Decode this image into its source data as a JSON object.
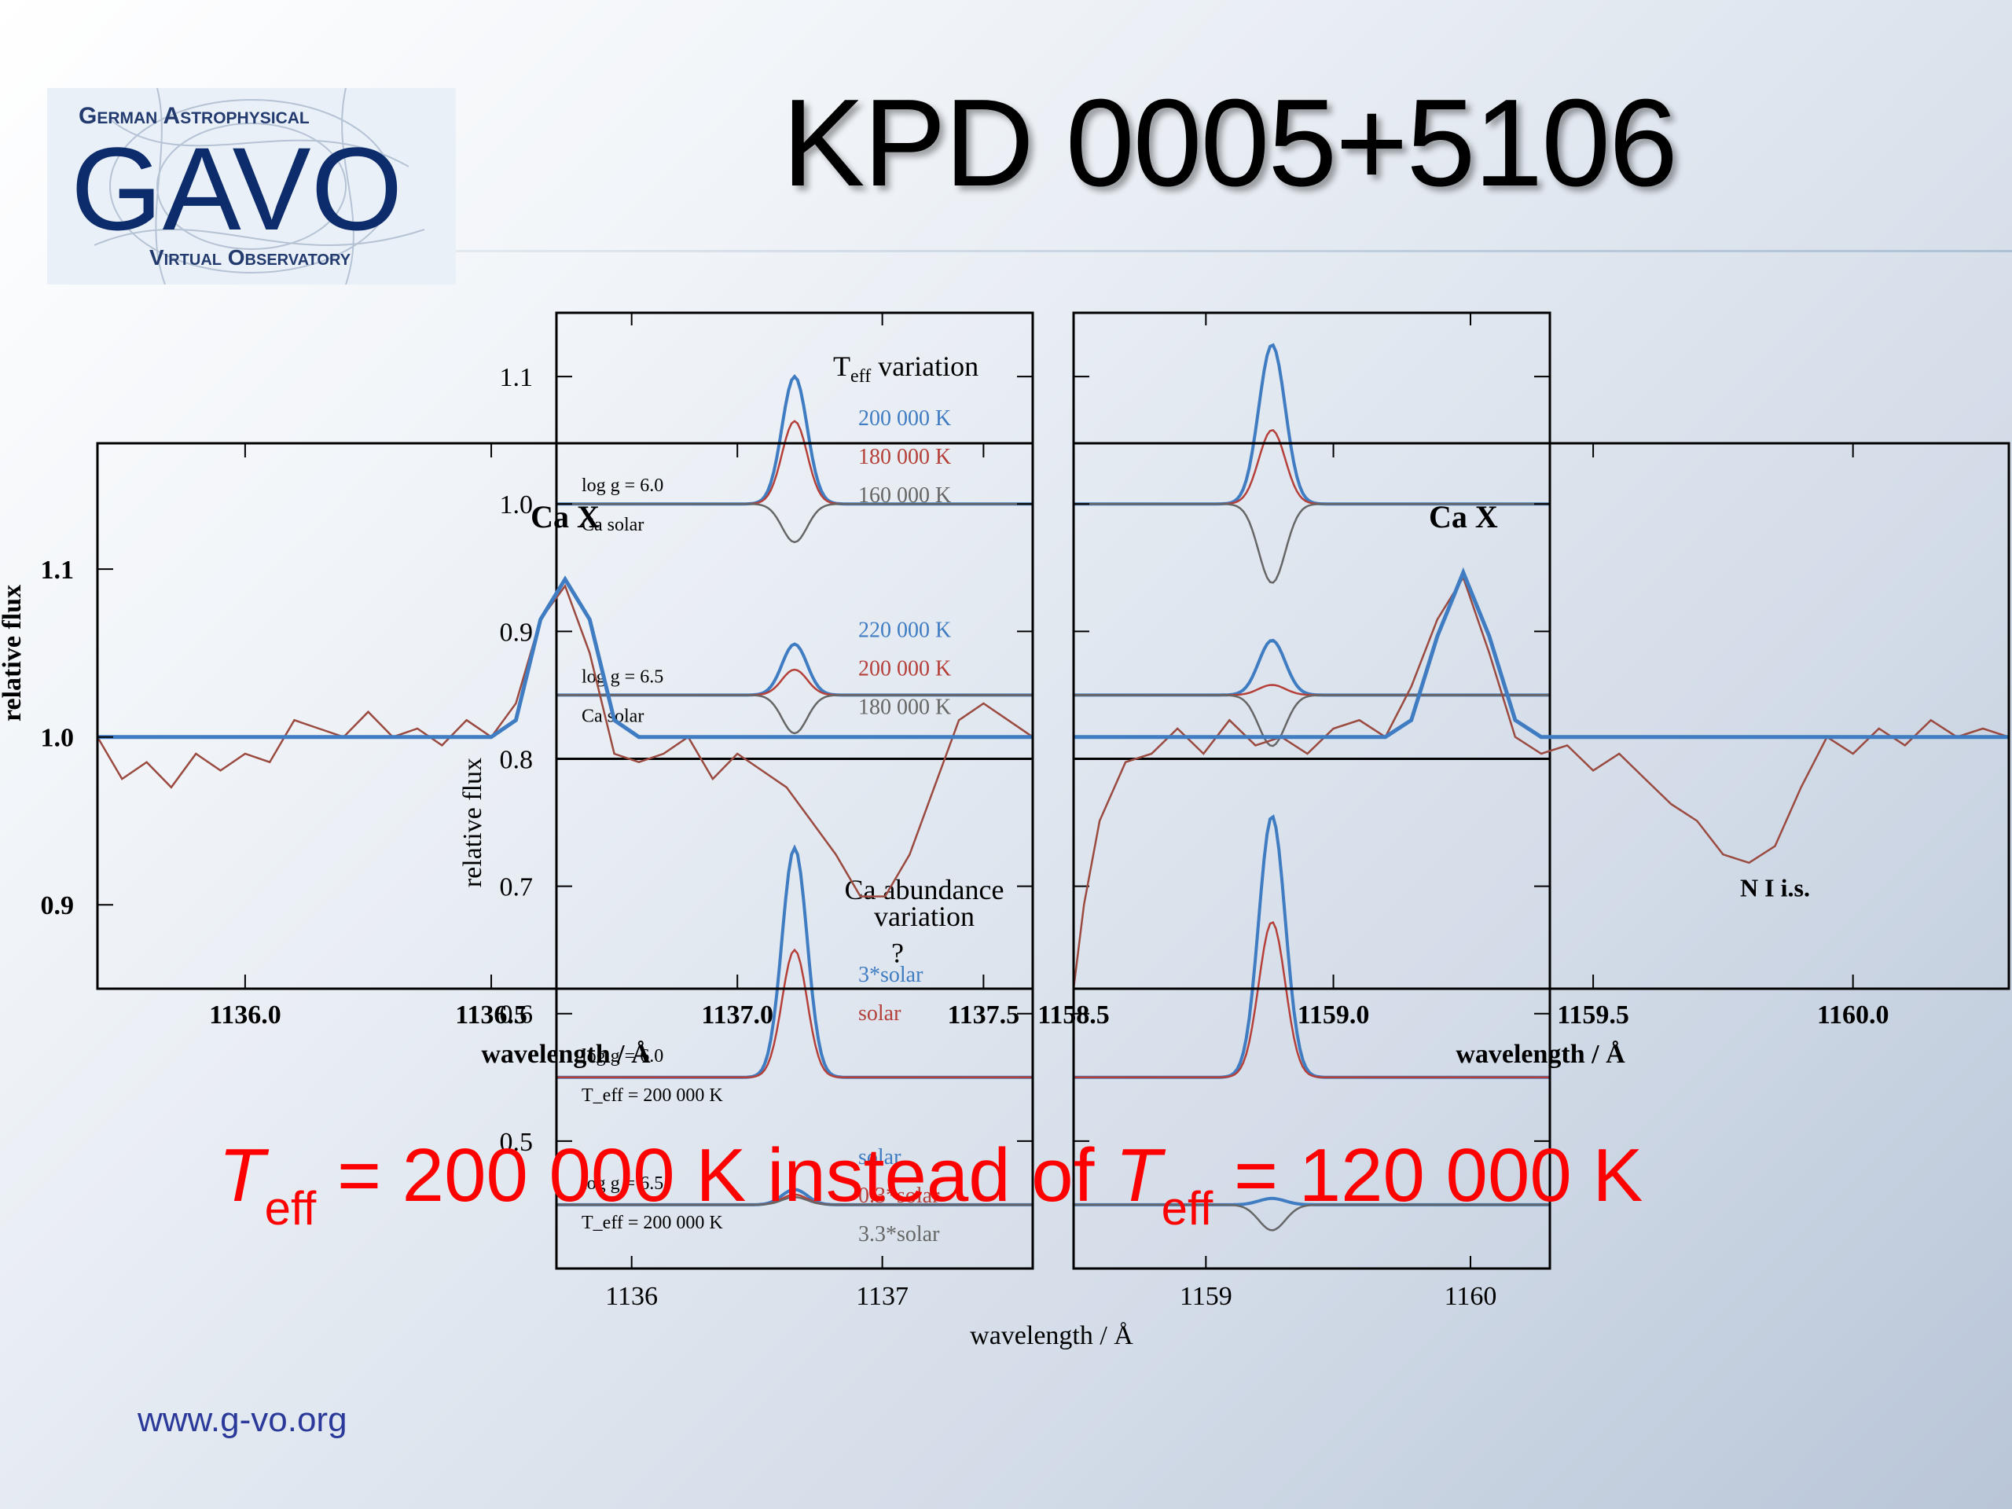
{
  "slide": {
    "title": "KPD 0005+5106",
    "footer": "www.g-vo.org",
    "logo": {
      "line1": "German Astrophysical",
      "main": "GAVO",
      "line2": "Virtual Observatory"
    }
  },
  "conclusion": {
    "t1": "T",
    "sub1": "eff",
    "mid": " = 200 000 K instead of ",
    "t2": "T",
    "sub2": "eff",
    "end": " = 120 000 K"
  },
  "colors": {
    "blue": "#3f7cc2",
    "red": "#b5403a",
    "brown": "#9b4a40",
    "gray": "#666666",
    "accent": "#ff0000"
  },
  "chart_data": [
    {
      "type": "line",
      "panel": "observed-left",
      "xlabel": "wavelength / Å",
      "ylabel": "relative flux",
      "xlim": [
        1135.7,
        1137.6
      ],
      "ylim": [
        0.85,
        1.175
      ],
      "xticks": [
        1136.0,
        1136.5,
        1137.0,
        1137.5
      ],
      "xtick_labels": [
        "1136.0",
        "1136.5",
        "1137.0",
        "1137.5"
      ],
      "yticks": [
        0.9,
        1.0,
        1.1
      ],
      "ytick_labels": [
        "0.9",
        "1.0",
        "1.1"
      ],
      "annotations": [
        {
          "text": "Ca X",
          "x": 1136.65,
          "y": 1.125
        }
      ],
      "series": [
        {
          "role": "model",
          "color": "#3f7cc2",
          "x": [
            1135.7,
            1136.5,
            1136.55,
            1136.6,
            1136.65,
            1136.7,
            1136.75,
            1136.8,
            1137.6
          ],
          "y": [
            1.0,
            1.0,
            1.01,
            1.07,
            1.094,
            1.07,
            1.01,
            1.0,
            1.0
          ]
        },
        {
          "role": "observed",
          "color": "#9b4a40",
          "x": [
            1135.7,
            1135.75,
            1135.8,
            1135.85,
            1135.9,
            1135.95,
            1136.0,
            1136.05,
            1136.1,
            1136.15,
            1136.2,
            1136.25,
            1136.3,
            1136.35,
            1136.4,
            1136.45,
            1136.5,
            1136.55,
            1136.6,
            1136.65,
            1136.7,
            1136.75,
            1136.8,
            1136.85,
            1136.9,
            1136.95,
            1137.0,
            1137.05,
            1137.1,
            1137.15,
            1137.2,
            1137.25,
            1137.3,
            1137.35,
            1137.4,
            1137.45,
            1137.5,
            1137.55,
            1137.6
          ],
          "y": [
            1.0,
            0.975,
            0.985,
            0.97,
            0.99,
            0.98,
            0.99,
            0.985,
            1.01,
            1.005,
            1.0,
            1.015,
            1.0,
            1.005,
            0.995,
            1.01,
            1.0,
            1.02,
            1.07,
            1.09,
            1.05,
            0.99,
            0.985,
            0.99,
            1.0,
            0.975,
            0.99,
            0.98,
            0.97,
            0.95,
            0.93,
            0.905,
            0.905,
            0.93,
            0.97,
            1.01,
            1.02,
            1.01,
            1.0
          ]
        }
      ]
    },
    {
      "type": "line",
      "panel": "observed-right",
      "xlabel": "wavelength / Å",
      "xlim": [
        1158.5,
        1160.3
      ],
      "ylim": [
        0.85,
        1.175
      ],
      "xticks": [
        1158.5,
        1159.0,
        1159.5,
        1160.0
      ],
      "xtick_labels": [
        "1158.5",
        "1159.0",
        "1159.5",
        "1160.0"
      ],
      "annotations": [
        {
          "text": "Ca X",
          "x": 1159.25,
          "y": 1.125
        },
        {
          "text": "N I i.s.",
          "x": 1159.85,
          "y": 0.905
        }
      ],
      "series": [
        {
          "role": "model",
          "color": "#3f7cc2",
          "x": [
            1158.5,
            1159.1,
            1159.15,
            1159.2,
            1159.25,
            1159.3,
            1159.35,
            1159.4,
            1160.3
          ],
          "y": [
            1.0,
            1.0,
            1.01,
            1.06,
            1.098,
            1.06,
            1.01,
            1.0,
            1.0
          ]
        },
        {
          "role": "observed",
          "color": "#9b4a40",
          "x": [
            1158.5,
            1158.52,
            1158.55,
            1158.6,
            1158.65,
            1158.7,
            1158.75,
            1158.8,
            1158.85,
            1158.9,
            1158.95,
            1159.0,
            1159.05,
            1159.1,
            1159.15,
            1159.2,
            1159.25,
            1159.3,
            1159.35,
            1159.4,
            1159.45,
            1159.5,
            1159.55,
            1159.6,
            1159.65,
            1159.7,
            1159.75,
            1159.8,
            1159.85,
            1159.9,
            1159.95,
            1160.0,
            1160.05,
            1160.1,
            1160.15,
            1160.2,
            1160.25,
            1160.3
          ],
          "y": [
            0.85,
            0.9,
            0.95,
            0.985,
            0.99,
            1.005,
            0.99,
            1.01,
            0.995,
            1.0,
            0.99,
            1.005,
            1.01,
            1.0,
            1.03,
            1.07,
            1.095,
            1.05,
            1.0,
            0.99,
            0.995,
            0.98,
            0.99,
            0.975,
            0.96,
            0.95,
            0.93,
            0.925,
            0.935,
            0.97,
            1.0,
            0.99,
            1.005,
            0.995,
            1.01,
            1.0,
            1.005,
            1.0
          ]
        }
      ]
    },
    {
      "type": "line",
      "panel": "models-left",
      "xlabel": "wavelength / Å",
      "ylabel": "relative flux",
      "xlim": [
        1135.7,
        1137.6
      ],
      "ylim": [
        0.4,
        1.15
      ],
      "xticks": [
        1136,
        1137
      ],
      "xtick_labels": [
        "1136",
        "1137"
      ],
      "yticks": [
        0.5,
        0.6,
        0.7,
        0.8,
        0.9,
        1.0,
        1.1
      ],
      "ytick_labels": [
        "0.5",
        "0.6",
        "0.7",
        "0.8",
        "0.9",
        "1.0",
        "1.1"
      ],
      "subtitle_top": {
        "pre": "T",
        "sub": "eff",
        "post": "  variation"
      },
      "subtitle_bottom": [
        "Ca abundance",
        "variation"
      ],
      "groups": [
        {
          "baseline": 1.0,
          "labels": [
            "log g = 6.0",
            "Ca solar"
          ],
          "series": [
            {
              "name": "200 000 K",
              "color": "#3f7cc2",
              "amp": 0.1
            },
            {
              "name": "180 000 K",
              "color": "#b5403a",
              "amp": 0.065
            },
            {
              "name": "160 000 K",
              "color": "#666666",
              "amp": -0.03
            }
          ]
        },
        {
          "baseline": 0.85,
          "labels": [
            "log g = 6.5",
            "Ca solar"
          ],
          "series": [
            {
              "name": "220 000 K",
              "color": "#3f7cc2",
              "amp": 0.04
            },
            {
              "name": "200 000 K",
              "color": "#b5403a",
              "amp": 0.02
            },
            {
              "name": "180 000 K",
              "color": "#666666",
              "amp": -0.03
            }
          ]
        },
        {
          "baseline": 0.55,
          "labels": [
            "log g = 6.0",
            "T_eff = 200 000 K"
          ],
          "series": [
            {
              "name": "3*solar",
              "color": "#3f7cc2",
              "amp": 0.18
            },
            {
              "name": "solar",
              "color": "#b5403a",
              "amp": 0.1
            }
          ]
        },
        {
          "baseline": 0.45,
          "labels": [
            "log g = 6.5",
            "T_eff = 200 000 K"
          ],
          "series": [
            {
              "name": "solar",
              "color": "#3f7cc2",
              "amp": 0.012
            },
            {
              "name": "0.3*solar",
              "color": "#b5403a",
              "amp": 0.008
            },
            {
              "name": "3.3*solar",
              "color": "#666666",
              "amp": 0.006
            }
          ]
        }
      ],
      "question_mark": "?"
    },
    {
      "type": "line",
      "panel": "models-right",
      "xlim": [
        1158.5,
        1160.3
      ],
      "ylim": [
        0.4,
        1.15
      ],
      "xticks": [
        1159,
        1160
      ],
      "xtick_labels": [
        "1159",
        "1160"
      ],
      "groups": [
        {
          "baseline": 1.0,
          "series": [
            {
              "color": "#3f7cc2",
              "amp": 0.125
            },
            {
              "color": "#b5403a",
              "amp": 0.058
            },
            {
              "color": "#666666",
              "amp": -0.062
            }
          ]
        },
        {
          "baseline": 0.85,
          "series": [
            {
              "color": "#3f7cc2",
              "amp": 0.043
            },
            {
              "color": "#b5403a",
              "amp": 0.008
            },
            {
              "color": "#666666",
              "amp": -0.04
            }
          ]
        },
        {
          "baseline": 0.55,
          "series": [
            {
              "color": "#3f7cc2",
              "amp": 0.205
            },
            {
              "color": "#b5403a",
              "amp": 0.122
            }
          ]
        },
        {
          "baseline": 0.45,
          "series": [
            {
              "color": "#3f7cc2",
              "amp": 0.005
            },
            {
              "color": "#666666",
              "amp": -0.02
            }
          ]
        }
      ]
    }
  ]
}
